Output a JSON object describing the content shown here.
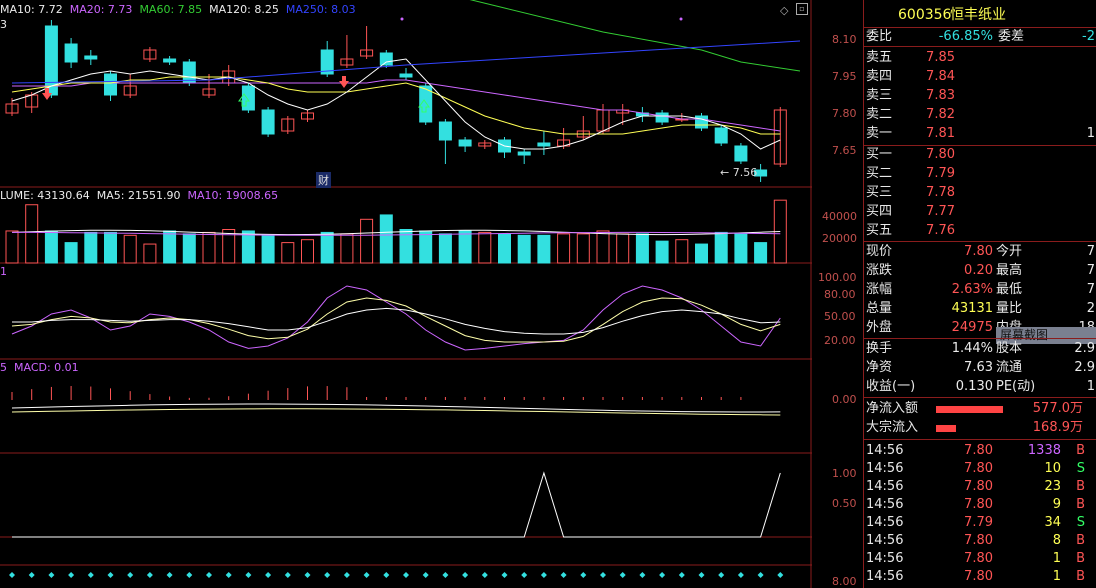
{
  "legend_main": {
    "ma10": "MA10: 7.72",
    "ma20": "MA20: 7.73",
    "ma60": "MA60: 7.85",
    "ma120": "MA120: 8.25",
    "ma250": "MA250: 8.03",
    "prefix": "3"
  },
  "legend_volume": {
    "volume": "LUME: 43130.64",
    "ma5": "MA5: 21551.90",
    "ma10": "MA10: 19008.65"
  },
  "legend_kdj": {
    "prefix": "1"
  },
  "legend_macd": {
    "prefix": "5",
    "macd": "MACD: 0.01"
  },
  "annotations": {
    "cai": "财",
    "low_price": "← 7.56"
  },
  "axis": {
    "price": [
      "8.10",
      "7.95",
      "7.80",
      "7.65"
    ],
    "volume": [
      "40000",
      "20000"
    ],
    "kdj": [
      "100.00",
      "80.00",
      "50.00",
      "20.00"
    ],
    "macd": [
      "0.00"
    ],
    "signal": [
      "1.00",
      "0.50"
    ],
    "bottom": [
      "8.00"
    ]
  },
  "colors": {
    "up": "#ff5555",
    "down": "#33e0e0",
    "ma5": "#ffffff",
    "ma10": "#ffff55",
    "ma20": "#cc66ff",
    "ma60": "#33cc33",
    "ma250": "#3344ff",
    "border": "#8a1c1c"
  },
  "stock": {
    "code": "600356",
    "name": "恒丰纸业"
  },
  "commission": {
    "ratio_label": "委比",
    "ratio_value": "-66.85%",
    "diff_label": "委差",
    "diff_value": "-2"
  },
  "asks": [
    {
      "label": "卖五",
      "price": "7.85",
      "vol": ""
    },
    {
      "label": "卖四",
      "price": "7.84",
      "vol": ""
    },
    {
      "label": "卖三",
      "price": "7.83",
      "vol": ""
    },
    {
      "label": "卖二",
      "price": "7.82",
      "vol": ""
    },
    {
      "label": "卖一",
      "price": "7.81",
      "vol": "1"
    }
  ],
  "bids": [
    {
      "label": "买一",
      "price": "7.80",
      "vol": ""
    },
    {
      "label": "买二",
      "price": "7.79",
      "vol": ""
    },
    {
      "label": "买三",
      "price": "7.78",
      "vol": ""
    },
    {
      "label": "买四",
      "price": "7.77",
      "vol": ""
    },
    {
      "label": "买五",
      "price": "7.76",
      "vol": ""
    }
  ],
  "quote": [
    {
      "l1": "现价",
      "v1": "7.80",
      "l2": "今开",
      "v2": "7"
    },
    {
      "l1": "涨跌",
      "v1": "0.20",
      "l2": "最高",
      "v2": "7"
    },
    {
      "l1": "涨幅",
      "v1": "2.63%",
      "l2": "最低",
      "v2": "7"
    },
    {
      "l1": "总量",
      "v1": "43131",
      "l2": "量比",
      "v2": "2"
    },
    {
      "l1": "外盘",
      "v1": "24975",
      "l2": "内盘",
      "v2": "18"
    }
  ],
  "quote2": [
    {
      "l1": "换手",
      "v1": "1.44%",
      "l2": "股本",
      "v2": "2.9"
    },
    {
      "l1": "净资",
      "v1": "7.63",
      "l2": "流通",
      "v2": "2.9"
    },
    {
      "l1": "收益(一)",
      "v1": "0.130",
      "l2": "PE(动)",
      "v2": "1"
    }
  ],
  "tooltip": "屏幕截图",
  "flows": [
    {
      "label": "净流入额",
      "value": "577.0万",
      "fill": 0.95
    },
    {
      "label": "大宗流入",
      "value": "168.9万",
      "fill": 0.28
    }
  ],
  "ticks": [
    {
      "time": "14:56",
      "price": "7.80",
      "vol": "1338",
      "side": "B"
    },
    {
      "time": "14:56",
      "price": "7.80",
      "vol": "10",
      "side": "S"
    },
    {
      "time": "14:56",
      "price": "7.80",
      "vol": "23",
      "side": "B"
    },
    {
      "time": "14:56",
      "price": "7.80",
      "vol": "9",
      "side": "B"
    },
    {
      "time": "14:56",
      "price": "7.79",
      "vol": "34",
      "side": "S"
    },
    {
      "time": "14:56",
      "price": "7.80",
      "vol": "8",
      "side": "B"
    },
    {
      "time": "14:56",
      "price": "7.80",
      "vol": "1",
      "side": "B"
    },
    {
      "time": "14:56",
      "price": "7.80",
      "vol": "1",
      "side": "B"
    }
  ]
}
